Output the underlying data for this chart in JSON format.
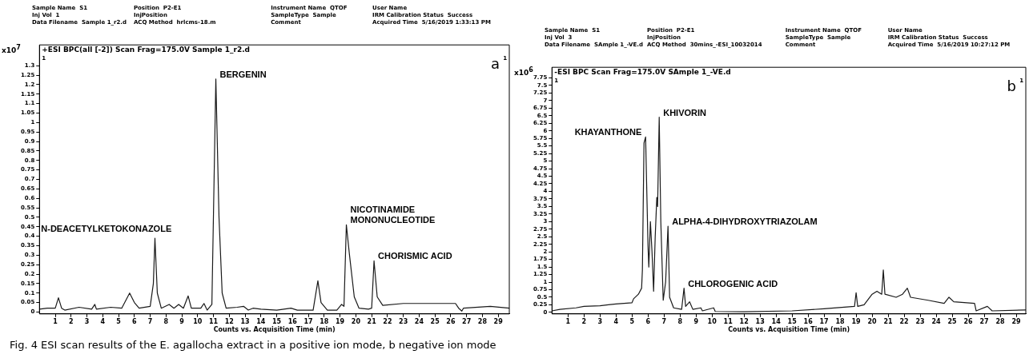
{
  "chart_data": [
    {
      "type": "line",
      "title": "+ESI BPC(all [-2]) Scan Frag=175.0V Sample 1_r2.d",
      "xlabel": "Counts vs. Acquisition Time (min)",
      "ylabel": "x10$^{7}$",
      "color": "#1a1a1a",
      "x": [
        0,
        0.5,
        1.0,
        1.2,
        1.4,
        1.6,
        2.5,
        3.3,
        3.5,
        3.6,
        4.5,
        5.2,
        5.7,
        6.0,
        6.3,
        7.0,
        7.2,
        7.3,
        7.45,
        7.7,
        8.2,
        8.5,
        8.8,
        9.1,
        9.4,
        9.6,
        10.2,
        10.4,
        10.6,
        10.9,
        11.15,
        11.35,
        11.55,
        11.8,
        12.5,
        12.9,
        13.2,
        13.5,
        14,
        15,
        15.9,
        16.3,
        17.3,
        17.6,
        17.8,
        18.2,
        18.8,
        19.1,
        19.25,
        19.4,
        19.6,
        19.9,
        20.2,
        20.8,
        21.0,
        21.15,
        21.35,
        21.7,
        23,
        26.3,
        26.5,
        26.7,
        26.8,
        28.5,
        29.7
      ],
      "values": [
        0.015,
        0.02,
        0.02,
        0.075,
        0.02,
        0.01,
        0.025,
        0.015,
        0.04,
        0.015,
        0.025,
        0.02,
        0.1,
        0.05,
        0.02,
        0.03,
        0.15,
        0.39,
        0.1,
        0.02,
        0.04,
        0.02,
        0.04,
        0.02,
        0.085,
        0.02,
        0.02,
        0.045,
        0.01,
        0.04,
        1.23,
        0.5,
        0.1,
        0.02,
        0.025,
        0.03,
        0.01,
        0.02,
        0.015,
        0.01,
        0.02,
        0.01,
        0.01,
        0.165,
        0.05,
        0.01,
        0.01,
        0.04,
        0.03,
        0.46,
        0.3,
        0.08,
        0.02,
        0.015,
        0.02,
        0.27,
        0.08,
        0.035,
        0.045,
        0.045,
        0.02,
        0.005,
        0.02,
        0.03,
        0.02
      ],
      "xlim": [
        0,
        29.7
      ],
      "xticks": [
        1,
        2,
        3,
        4,
        5,
        6,
        7,
        8,
        9,
        10,
        11,
        12,
        13,
        14,
        15,
        16,
        17,
        18,
        19,
        20,
        21,
        22,
        23,
        24,
        25,
        26,
        27,
        28,
        29
      ],
      "ylim": [
        -0.01,
        1.41
      ],
      "yticks": [
        0,
        0.05,
        0.1,
        0.15,
        0.2,
        0.25,
        0.3,
        0.35,
        0.4,
        0.45,
        0.5,
        0.55,
        0.6,
        0.65,
        0.7,
        0.75,
        0.8,
        0.85,
        0.9,
        0.95,
        1,
        1.05,
        1.1,
        1.15,
        1.2,
        1.25,
        1.3
      ],
      "grid": false,
      "legend": false,
      "marker": "none",
      "line_style": "solid",
      "annotations": [
        "Sample Name  S1",
        "Position  P2-E1",
        "Instrument Name  QTOF",
        "User Name",
        "Inj Vol  1",
        "InjPosition",
        "SampleType  Sample",
        "IRM Calibration Status  Success",
        "Data Filename  Sample 1_r2.d",
        "ACQ Method  hrlcms-18.m",
        "Comment",
        "Acquired Time  5/16/2019 1:33:13 PM",
        "1",
        "1",
        "a",
        {
          "text": "N-DEACETYLKETOKONAZOLE",
          "x": 7.3,
          "y": 0.39
        },
        {
          "text": "BERGENIN",
          "x": 11.15,
          "y": 1.23
        },
        {
          "text": "NICOTINAMIDE\nMONONUCLEOTIDE",
          "x": 19.4,
          "y": 0.46
        },
        {
          "text": "CHORISMIC ACID",
          "x": 21.15,
          "y": 0.27
        }
      ]
    },
    {
      "type": "line",
      "title": "-ESI BPC Scan Frag=175.0V SAmple 1_-VE.d",
      "xlabel": "Counts vs. Acquisition Time (min)",
      "ylabel": "x10$^{6}$",
      "color": "#1a1a1a",
      "x": [
        0,
        0.5,
        1.5,
        2,
        3,
        4,
        5,
        5.1,
        5.4,
        5.6,
        5.65,
        5.75,
        5.85,
        6.0,
        6.05,
        6.15,
        6.25,
        6.35,
        6.45,
        6.55,
        6.6,
        6.7,
        6.8,
        6.95,
        7.1,
        7.25,
        7.35,
        7.6,
        8.1,
        8.25,
        8.35,
        8.6,
        8.8,
        9.3,
        9.4,
        10.1,
        10.2,
        12,
        15,
        17,
        18.9,
        19.0,
        19.1,
        19.5,
        20.0,
        20.3,
        20.6,
        20.7,
        20.8,
        21.5,
        21.9,
        22.2,
        22.4,
        23.5,
        24.5,
        24.8,
        25.1,
        26.4,
        26.5,
        27.2,
        27.5,
        29.6
      ],
      "values": [
        0.05,
        0.1,
        0.15,
        0.2,
        0.22,
        0.28,
        0.32,
        0.45,
        0.6,
        0.8,
        1.4,
        5.6,
        5.8,
        2.2,
        1.5,
        3.0,
        2.0,
        0.7,
        2.5,
        3.8,
        3.5,
        6.45,
        3.0,
        0.4,
        1.0,
        2.85,
        0.5,
        0.15,
        0.1,
        0.8,
        0.2,
        0.35,
        0.1,
        0.15,
        0.05,
        0.15,
        0.03,
        0.02,
        0.05,
        0.12,
        0.2,
        0.65,
        0.2,
        0.25,
        0.6,
        0.7,
        0.6,
        1.4,
        0.6,
        0.5,
        0.6,
        0.8,
        0.5,
        0.4,
        0.3,
        0.5,
        0.35,
        0.3,
        0.05,
        0.2,
        0.05,
        0.08
      ],
      "xlim": [
        0,
        29.6
      ],
      "xticks": [
        1,
        2,
        3,
        4,
        5,
        6,
        7,
        8,
        9,
        10,
        11,
        12,
        13,
        14,
        15,
        16,
        17,
        18,
        19,
        20,
        21,
        22,
        23,
        24,
        25,
        26,
        27,
        28,
        29
      ],
      "ylim": [
        -0.05,
        8.1
      ],
      "yticks": [
        0,
        0.25,
        0.5,
        0.75,
        1,
        1.25,
        1.5,
        1.75,
        2,
        2.25,
        2.5,
        2.75,
        3,
        3.25,
        3.5,
        3.75,
        4,
        4.25,
        4.5,
        4.75,
        5,
        5.25,
        5.5,
        5.75,
        6,
        6.25,
        6.5,
        6.75,
        7,
        7.25,
        7.5,
        7.75
      ],
      "grid": false,
      "legend": false,
      "marker": "none",
      "line_style": "solid",
      "annotations": [
        "Sample Name  S1",
        "Position  P2-E1",
        "Instrument Name  QTOF",
        "User Name",
        "Inj Vol  3",
        "InjPosition",
        "SampleType  Sample",
        "IRM Calibration Status  Success",
        "Data Filename  SAmple 1_-VE.d",
        "ACQ Method  30mins_-ESI_10032014",
        "Comment",
        "Acquired Time  5/16/2019 10:27:12 PM",
        "1",
        "1",
        "b",
        {
          "text": "KHAYANTHONE",
          "x": 5.85,
          "y": 5.8
        },
        {
          "text": "KHIVORIN",
          "x": 6.7,
          "y": 6.45
        },
        {
          "text": "ALPHA-4-DIHYDROXYTRIAZOLAM",
          "x": 7.25,
          "y": 2.85
        },
        {
          "text": "CHLOROGENIC ACID",
          "x": 8.25,
          "y": 0.8
        }
      ]
    },
    {
      "type": "other",
      "annotations": [
        "Fig. 4  ESI scan results of the E. agallocha extract in a positive ion mode, b negative ion mode"
      ]
    }
  ]
}
